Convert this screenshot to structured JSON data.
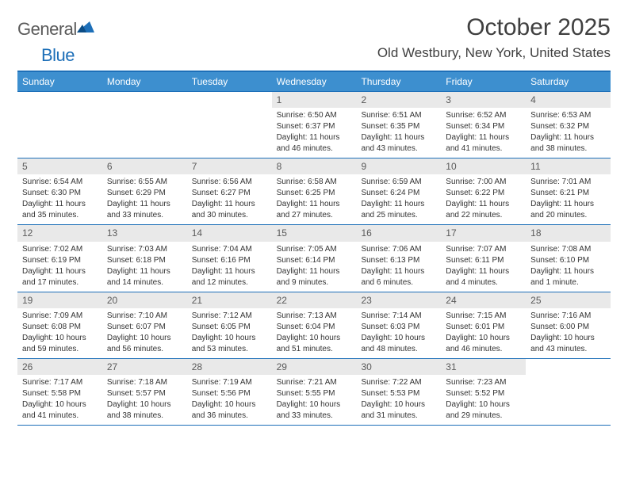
{
  "brand": {
    "name_left": "General",
    "name_right": "Blue"
  },
  "title": "October 2025",
  "location": "Old Westbury, New York, United States",
  "colors": {
    "header_bg": "#3d8fcf",
    "border": "#1d6fb8",
    "day_num_bg": "#e9e9e9",
    "text": "#333333",
    "title_text": "#404040"
  },
  "day_names": [
    "Sunday",
    "Monday",
    "Tuesday",
    "Wednesday",
    "Thursday",
    "Friday",
    "Saturday"
  ],
  "weeks": [
    [
      {
        "n": "",
        "s": "",
        "ss": "",
        "d": ""
      },
      {
        "n": "",
        "s": "",
        "ss": "",
        "d": ""
      },
      {
        "n": "",
        "s": "",
        "ss": "",
        "d": ""
      },
      {
        "n": "1",
        "s": "Sunrise: 6:50 AM",
        "ss": "Sunset: 6:37 PM",
        "d": "Daylight: 11 hours and 46 minutes."
      },
      {
        "n": "2",
        "s": "Sunrise: 6:51 AM",
        "ss": "Sunset: 6:35 PM",
        "d": "Daylight: 11 hours and 43 minutes."
      },
      {
        "n": "3",
        "s": "Sunrise: 6:52 AM",
        "ss": "Sunset: 6:34 PM",
        "d": "Daylight: 11 hours and 41 minutes."
      },
      {
        "n": "4",
        "s": "Sunrise: 6:53 AM",
        "ss": "Sunset: 6:32 PM",
        "d": "Daylight: 11 hours and 38 minutes."
      }
    ],
    [
      {
        "n": "5",
        "s": "Sunrise: 6:54 AM",
        "ss": "Sunset: 6:30 PM",
        "d": "Daylight: 11 hours and 35 minutes."
      },
      {
        "n": "6",
        "s": "Sunrise: 6:55 AM",
        "ss": "Sunset: 6:29 PM",
        "d": "Daylight: 11 hours and 33 minutes."
      },
      {
        "n": "7",
        "s": "Sunrise: 6:56 AM",
        "ss": "Sunset: 6:27 PM",
        "d": "Daylight: 11 hours and 30 minutes."
      },
      {
        "n": "8",
        "s": "Sunrise: 6:58 AM",
        "ss": "Sunset: 6:25 PM",
        "d": "Daylight: 11 hours and 27 minutes."
      },
      {
        "n": "9",
        "s": "Sunrise: 6:59 AM",
        "ss": "Sunset: 6:24 PM",
        "d": "Daylight: 11 hours and 25 minutes."
      },
      {
        "n": "10",
        "s": "Sunrise: 7:00 AM",
        "ss": "Sunset: 6:22 PM",
        "d": "Daylight: 11 hours and 22 minutes."
      },
      {
        "n": "11",
        "s": "Sunrise: 7:01 AM",
        "ss": "Sunset: 6:21 PM",
        "d": "Daylight: 11 hours and 20 minutes."
      }
    ],
    [
      {
        "n": "12",
        "s": "Sunrise: 7:02 AM",
        "ss": "Sunset: 6:19 PM",
        "d": "Daylight: 11 hours and 17 minutes."
      },
      {
        "n": "13",
        "s": "Sunrise: 7:03 AM",
        "ss": "Sunset: 6:18 PM",
        "d": "Daylight: 11 hours and 14 minutes."
      },
      {
        "n": "14",
        "s": "Sunrise: 7:04 AM",
        "ss": "Sunset: 6:16 PM",
        "d": "Daylight: 11 hours and 12 minutes."
      },
      {
        "n": "15",
        "s": "Sunrise: 7:05 AM",
        "ss": "Sunset: 6:14 PM",
        "d": "Daylight: 11 hours and 9 minutes."
      },
      {
        "n": "16",
        "s": "Sunrise: 7:06 AM",
        "ss": "Sunset: 6:13 PM",
        "d": "Daylight: 11 hours and 6 minutes."
      },
      {
        "n": "17",
        "s": "Sunrise: 7:07 AM",
        "ss": "Sunset: 6:11 PM",
        "d": "Daylight: 11 hours and 4 minutes."
      },
      {
        "n": "18",
        "s": "Sunrise: 7:08 AM",
        "ss": "Sunset: 6:10 PM",
        "d": "Daylight: 11 hours and 1 minute."
      }
    ],
    [
      {
        "n": "19",
        "s": "Sunrise: 7:09 AM",
        "ss": "Sunset: 6:08 PM",
        "d": "Daylight: 10 hours and 59 minutes."
      },
      {
        "n": "20",
        "s": "Sunrise: 7:10 AM",
        "ss": "Sunset: 6:07 PM",
        "d": "Daylight: 10 hours and 56 minutes."
      },
      {
        "n": "21",
        "s": "Sunrise: 7:12 AM",
        "ss": "Sunset: 6:05 PM",
        "d": "Daylight: 10 hours and 53 minutes."
      },
      {
        "n": "22",
        "s": "Sunrise: 7:13 AM",
        "ss": "Sunset: 6:04 PM",
        "d": "Daylight: 10 hours and 51 minutes."
      },
      {
        "n": "23",
        "s": "Sunrise: 7:14 AM",
        "ss": "Sunset: 6:03 PM",
        "d": "Daylight: 10 hours and 48 minutes."
      },
      {
        "n": "24",
        "s": "Sunrise: 7:15 AM",
        "ss": "Sunset: 6:01 PM",
        "d": "Daylight: 10 hours and 46 minutes."
      },
      {
        "n": "25",
        "s": "Sunrise: 7:16 AM",
        "ss": "Sunset: 6:00 PM",
        "d": "Daylight: 10 hours and 43 minutes."
      }
    ],
    [
      {
        "n": "26",
        "s": "Sunrise: 7:17 AM",
        "ss": "Sunset: 5:58 PM",
        "d": "Daylight: 10 hours and 41 minutes."
      },
      {
        "n": "27",
        "s": "Sunrise: 7:18 AM",
        "ss": "Sunset: 5:57 PM",
        "d": "Daylight: 10 hours and 38 minutes."
      },
      {
        "n": "28",
        "s": "Sunrise: 7:19 AM",
        "ss": "Sunset: 5:56 PM",
        "d": "Daylight: 10 hours and 36 minutes."
      },
      {
        "n": "29",
        "s": "Sunrise: 7:21 AM",
        "ss": "Sunset: 5:55 PM",
        "d": "Daylight: 10 hours and 33 minutes."
      },
      {
        "n": "30",
        "s": "Sunrise: 7:22 AM",
        "ss": "Sunset: 5:53 PM",
        "d": "Daylight: 10 hours and 31 minutes."
      },
      {
        "n": "31",
        "s": "Sunrise: 7:23 AM",
        "ss": "Sunset: 5:52 PM",
        "d": "Daylight: 10 hours and 29 minutes."
      },
      {
        "n": "",
        "s": "",
        "ss": "",
        "d": ""
      }
    ]
  ]
}
